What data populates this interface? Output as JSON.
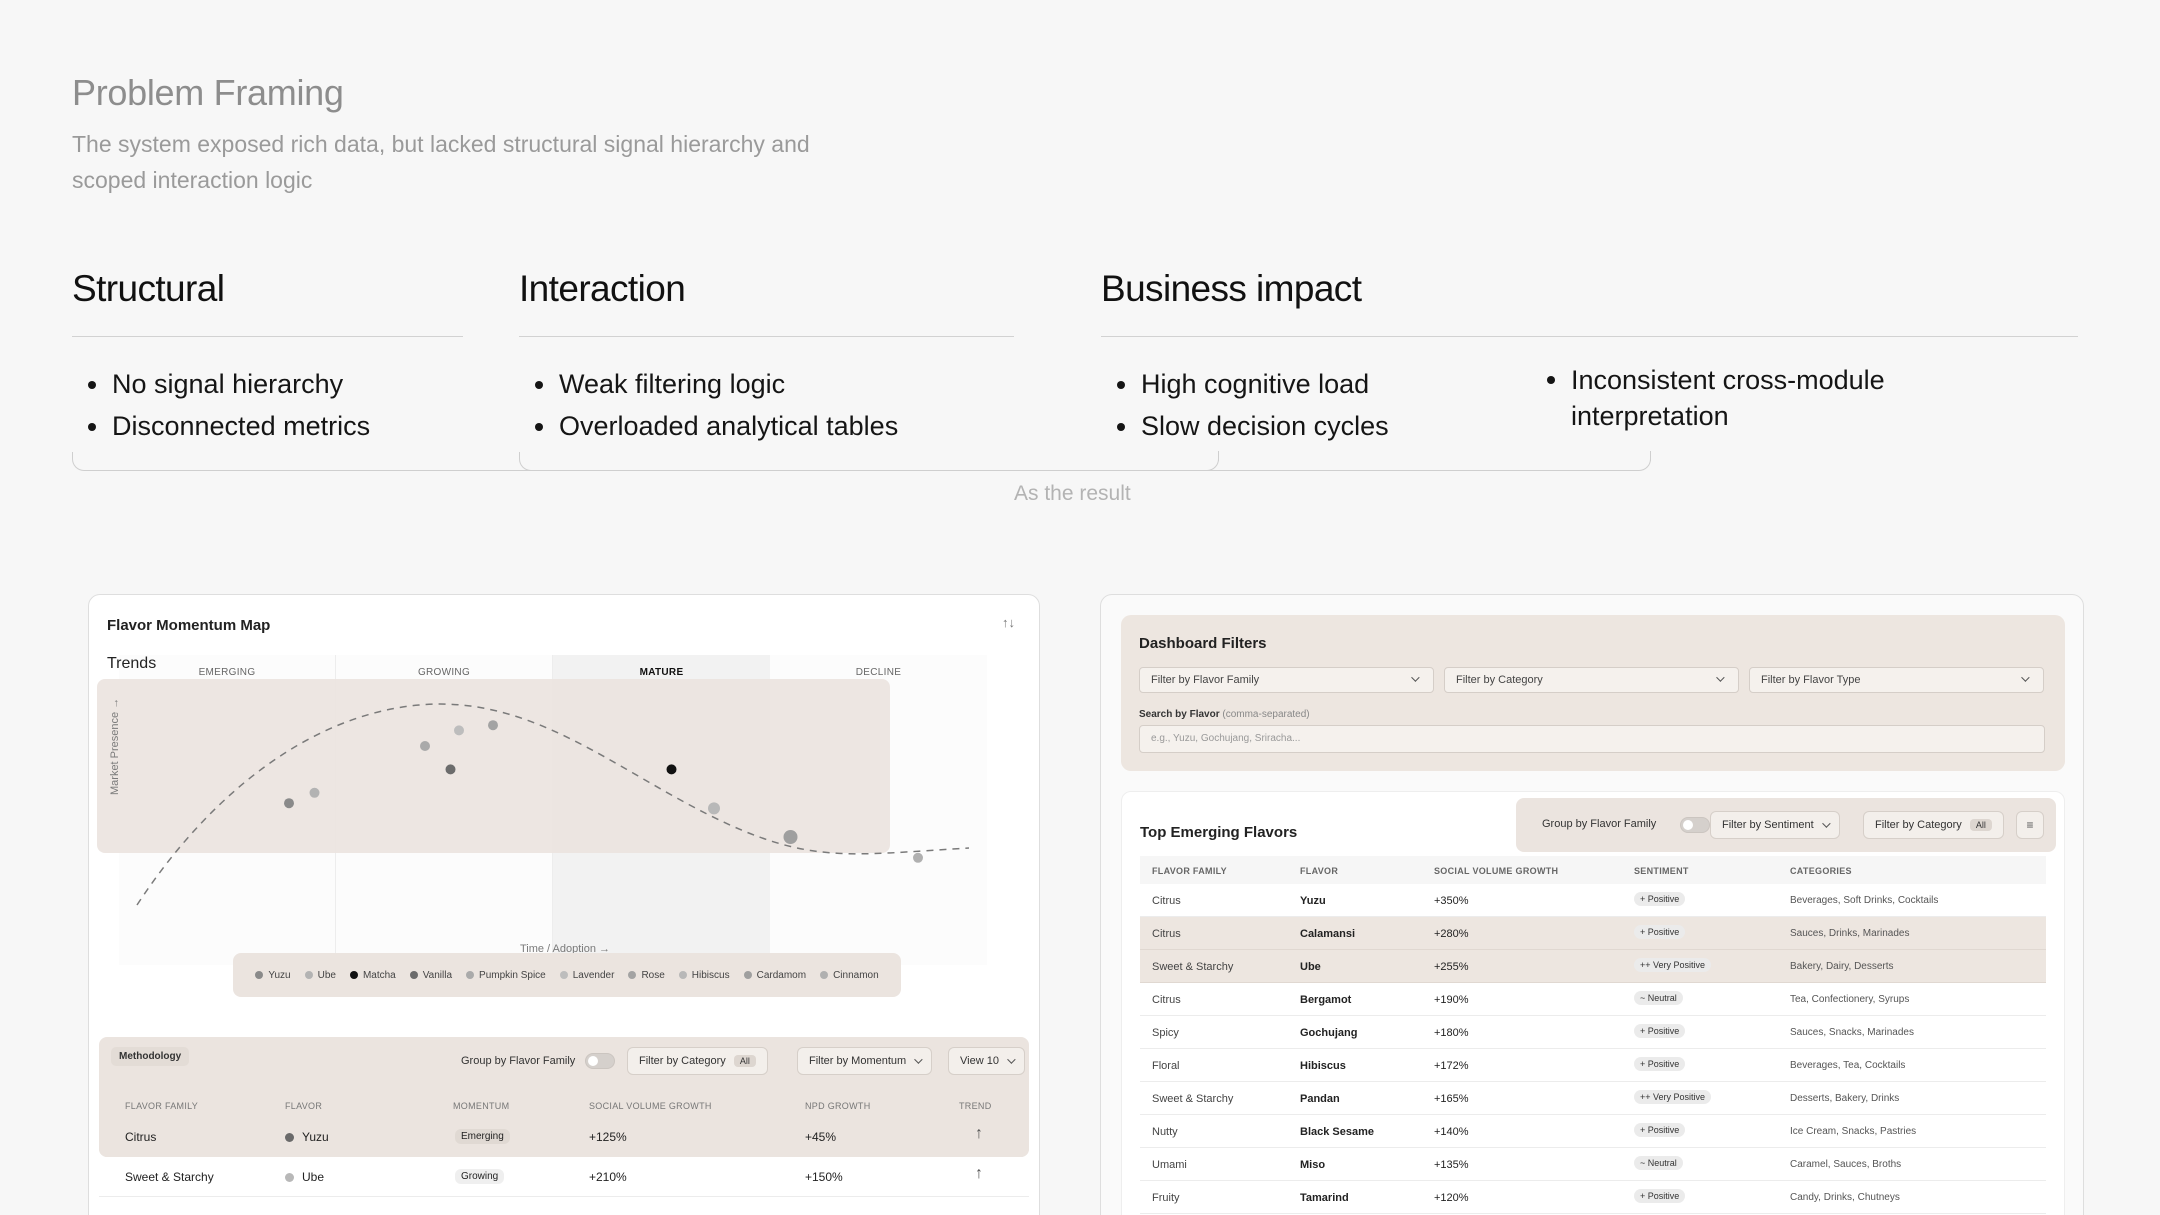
{
  "hero": {
    "title": "Problem Framing",
    "subtitle": "The system exposed rich data, but lacked structural signal hierarchy and scoped interaction logic"
  },
  "columns": {
    "structural": {
      "heading": "Structural",
      "items": [
        "No signal hierarchy",
        "Disconnected metrics"
      ]
    },
    "interaction": {
      "heading": "Interaction",
      "items": [
        "Weak filtering logic",
        "Overloaded analytical tables"
      ]
    },
    "business": {
      "heading": "Business impact",
      "items": [
        "High cognitive load",
        "Slow decision cycles"
      ],
      "extra_items": [
        "Inconsistent cross-module interpretation"
      ]
    }
  },
  "result_label": "As the result",
  "momentum_map": {
    "title": "Flavor Momentum Map",
    "trends_label": "Trends",
    "stages": [
      "EMERGING",
      "GROWING",
      "MATURE",
      "DECLINE"
    ],
    "y_axis": "Market Presence →",
    "x_axis": "Time / Adoption →",
    "legend": [
      {
        "name": "Yuzu",
        "color": "#8a8a8a"
      },
      {
        "name": "Ube",
        "color": "#b3b3b3"
      },
      {
        "name": "Matcha",
        "color": "#111111"
      },
      {
        "name": "Vanilla",
        "color": "#6c6c6c"
      },
      {
        "name": "Pumpkin Spice",
        "color": "#aaaaaa"
      },
      {
        "name": "Lavender",
        "color": "#bdbdbd"
      },
      {
        "name": "Rose",
        "color": "#a3a3a3"
      },
      {
        "name": "Hibiscus",
        "color": "#b8b8b8"
      },
      {
        "name": "Cardamom",
        "color": "#9f9f9f"
      },
      {
        "name": "Cinnamon",
        "color": "#b0b0b0"
      }
    ],
    "toolbar": {
      "methodology": "Methodology",
      "group_label": "Group by Flavor Family",
      "filter_category": "Filter by Category",
      "filter_category_badge": "All",
      "filter_momentum": "Filter by Momentum",
      "view": "View 10"
    },
    "table": {
      "headers": [
        "FLAVOR FAMILY",
        "FLAVOR",
        "MOMENTUM",
        "SOCIAL VOLUME GROWTH",
        "NPD GROWTH",
        "TREND"
      ],
      "rows": [
        {
          "family": "Citrus",
          "flavor": "Yuzu",
          "dot": "#6a6a6a",
          "momentum": "Emerging",
          "social": "+125%",
          "npd": "+45%",
          "trend": "↑"
        },
        {
          "family": "Sweet & Starchy",
          "flavor": "Ube",
          "dot": "#b8b8b8",
          "momentum": "Growing",
          "social": "+210%",
          "npd": "+150%",
          "trend": "↑"
        }
      ]
    }
  },
  "chart_data": {
    "type": "scatter",
    "title": "Flavor Momentum Map",
    "xlabel": "Time / Adoption →",
    "ylabel": "Market Presence →",
    "stages": [
      "EMERGING",
      "GROWING",
      "MATURE",
      "DECLINE"
    ],
    "grid": true,
    "legend_position": "bottom",
    "series": [
      {
        "name": "Yuzu",
        "x": 0.2,
        "y": 0.43
      },
      {
        "name": "Ube",
        "x": 0.23,
        "y": 0.47
      },
      {
        "name": "Matcha",
        "x": 0.65,
        "y": 0.56
      },
      {
        "name": "Vanilla",
        "x": 0.39,
        "y": 0.56
      },
      {
        "name": "Pumpkin Spice",
        "x": 0.36,
        "y": 0.65
      },
      {
        "name": "Lavender",
        "x": 0.4,
        "y": 0.71
      },
      {
        "name": "Rose",
        "x": 0.44,
        "y": 0.73
      },
      {
        "name": "Hibiscus",
        "x": 0.7,
        "y": 0.41
      },
      {
        "name": "Cardamom",
        "x": 0.79,
        "y": 0.3
      },
      {
        "name": "Cinnamon",
        "x": 0.94,
        "y": 0.22
      }
    ]
  },
  "dashboard": {
    "filters_title": "Dashboard Filters",
    "selects": [
      "Filter by Flavor Family",
      "Filter by Category",
      "Filter by Flavor Type"
    ],
    "search_label": "Search by Flavor",
    "search_hint": "(comma-separated)",
    "search_placeholder": "e.g., Yuzu, Gochujang, Sriracha...",
    "emerging_title": "Top Emerging Flavors",
    "group_label": "Group by Flavor Family",
    "filter_sentiment": "Filter by Sentiment",
    "filter_category": "Filter by Category",
    "filter_category_badge": "All",
    "table": {
      "headers": [
        "FLAVOR FAMILY",
        "FLAVOR",
        "SOCIAL VOLUME GROWTH",
        "SENTIMENT",
        "CATEGORIES"
      ],
      "rows": [
        {
          "family": "Citrus",
          "flavor": "Yuzu",
          "growth": "+350%",
          "sentiment": "+ Positive",
          "categories": "Beverages, Soft Drinks, Cocktails",
          "hl": false
        },
        {
          "family": "Citrus",
          "flavor": "Calamansi",
          "growth": "+280%",
          "sentiment": "+ Positive",
          "categories": "Sauces, Drinks, Marinades",
          "hl": true
        },
        {
          "family": "Sweet & Starchy",
          "flavor": "Ube",
          "growth": "+255%",
          "sentiment": "++ Very Positive",
          "categories": "Bakery, Dairy, Desserts",
          "hl": true
        },
        {
          "family": "Citrus",
          "flavor": "Bergamot",
          "growth": "+190%",
          "sentiment": "~ Neutral",
          "categories": "Tea, Confectionery, Syrups",
          "hl": false
        },
        {
          "family": "Spicy",
          "flavor": "Gochujang",
          "growth": "+180%",
          "sentiment": "+ Positive",
          "categories": "Sauces, Snacks, Marinades",
          "hl": false
        },
        {
          "family": "Floral",
          "flavor": "Hibiscus",
          "growth": "+172%",
          "sentiment": "+ Positive",
          "categories": "Beverages, Tea, Cocktails",
          "hl": false
        },
        {
          "family": "Sweet & Starchy",
          "flavor": "Pandan",
          "growth": "+165%",
          "sentiment": "++ Very Positive",
          "categories": "Desserts, Bakery, Drinks",
          "hl": false
        },
        {
          "family": "Nutty",
          "flavor": "Black Sesame",
          "growth": "+140%",
          "sentiment": "+ Positive",
          "categories": "Ice Cream, Snacks, Pastries",
          "hl": false
        },
        {
          "family": "Umami",
          "flavor": "Miso",
          "growth": "+135%",
          "sentiment": "~ Neutral",
          "categories": "Caramel, Sauces, Broths",
          "hl": false
        },
        {
          "family": "Fruity",
          "flavor": "Tamarind",
          "growth": "+120%",
          "sentiment": "+ Positive",
          "categories": "Candy, Drinks, Chutneys",
          "hl": false
        }
      ]
    }
  }
}
